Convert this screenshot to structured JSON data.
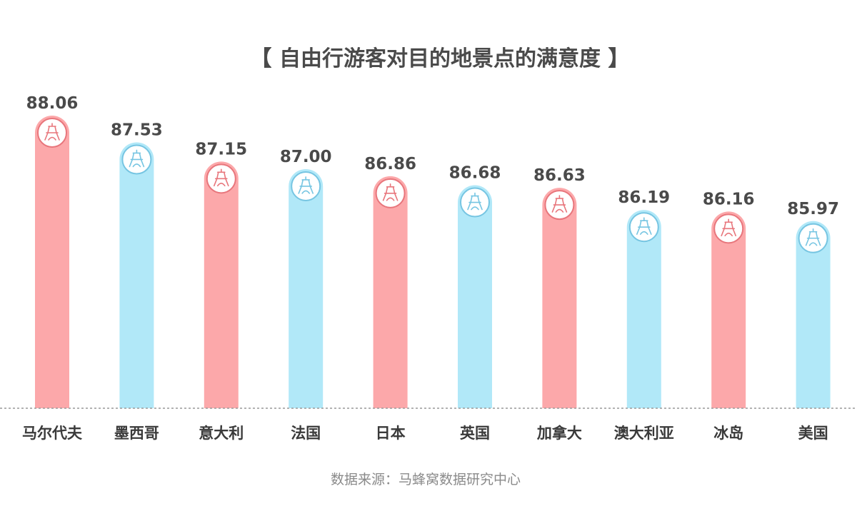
{
  "chart_data": {
    "type": "bar",
    "title": "【 自由行游客对目的地景点的满意度 】",
    "categories": [
      "马尔代夫",
      "墨西哥",
      "意大利",
      "法国",
      "日本",
      "英国",
      "加拿大",
      "澳大利亚",
      "冰岛",
      "美国"
    ],
    "values": [
      88.06,
      87.53,
      87.15,
      87.0,
      86.86,
      86.68,
      86.63,
      86.19,
      86.16,
      85.97
    ],
    "value_labels": [
      "88.06",
      "87.53",
      "87.15",
      "87.00",
      "86.86",
      "86.68",
      "86.63",
      "86.19",
      "86.16",
      "85.97"
    ],
    "xlabel": "",
    "ylabel": "",
    "ylim": [
      82.6,
      88.5
    ],
    "grid": false,
    "legend": "none",
    "bar_icon": "eiffel-tower-icon",
    "colors": {
      "pink": "#fca8aa",
      "blue": "#b1e8f8",
      "axis": "#999999",
      "icon_stroke_pink": "#e8767c",
      "icon_stroke_blue": "#76c5e2"
    },
    "color_pattern": [
      "pink",
      "blue",
      "pink",
      "blue",
      "pink",
      "blue",
      "pink",
      "blue",
      "pink",
      "blue"
    ]
  },
  "footer": {
    "source": "数据来源：马蜂窝数据研究中心"
  }
}
